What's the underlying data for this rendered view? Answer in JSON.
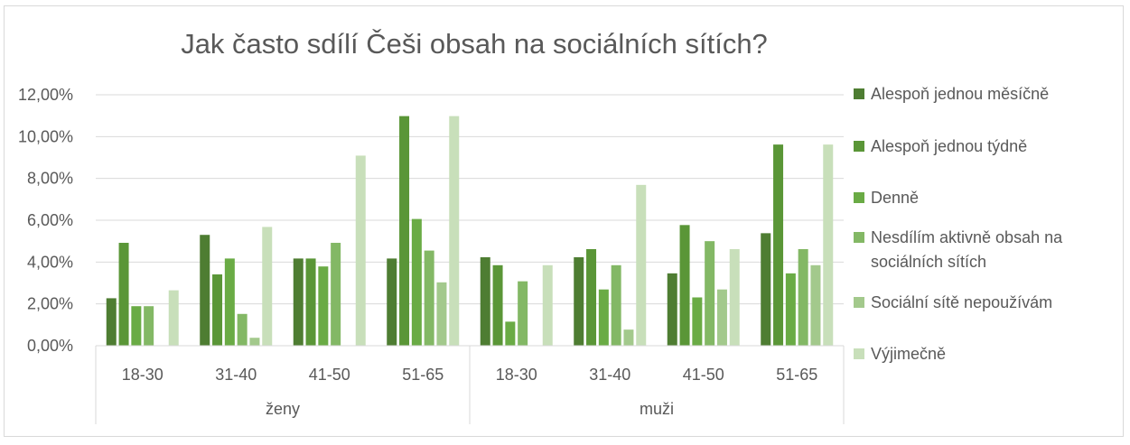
{
  "chart_data": {
    "type": "bar",
    "title": "Jak často sdílí Češi obsah na sociálních sítích?",
    "groups": [
      {
        "label": "ženy",
        "categories": [
          "18-30",
          "31-40",
          "41-50",
          "51-65"
        ]
      },
      {
        "label": "muži",
        "categories": [
          "18-30",
          "31-40",
          "41-50",
          "51-65"
        ]
      }
    ],
    "y_ticks": [
      "0,00%",
      "2,00%",
      "4,00%",
      "6,00%",
      "8,00%",
      "10,00%",
      "12,00%"
    ],
    "ylim": [
      0,
      12
    ],
    "y_unit": "percent",
    "grid": true,
    "legend_position": "right",
    "series": [
      {
        "name": "Alespoň jednou měsíčně",
        "color": "#4e7d32",
        "values": [
          2.27,
          5.3,
          4.17,
          4.17,
          4.23,
          4.23,
          3.46,
          5.38
        ]
      },
      {
        "name": "Alespoň jednou týdně",
        "color": "#5a9637",
        "values": [
          4.92,
          3.41,
          4.17,
          10.98,
          3.85,
          4.62,
          5.77,
          9.62
        ]
      },
      {
        "name": "Denně",
        "color": "#6aab45",
        "values": [
          1.89,
          4.17,
          3.79,
          6.06,
          1.15,
          2.69,
          2.31,
          3.46
        ]
      },
      {
        "name": "Nesdílím aktivně obsah na sociálních sítích",
        "color": "#83b865",
        "values": [
          1.89,
          1.52,
          4.92,
          4.55,
          3.08,
          3.85,
          5.0,
          4.62
        ]
      },
      {
        "name": "Sociální sítě nepoužívám",
        "color": "#a3c98c",
        "values": [
          0.0,
          0.38,
          0.0,
          3.03,
          0.0,
          0.77,
          2.69,
          3.85
        ]
      },
      {
        "name": "Výjimečně",
        "color": "#c8dfba",
        "values": [
          2.65,
          5.68,
          9.09,
          10.98,
          3.85,
          7.69,
          4.62,
          9.62
        ]
      }
    ]
  }
}
